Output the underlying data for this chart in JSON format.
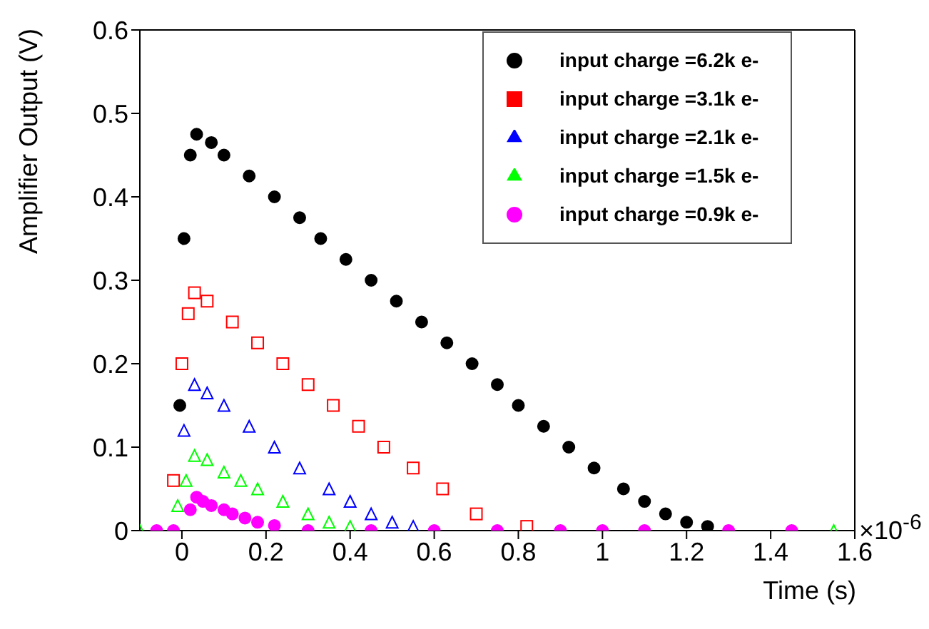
{
  "chart_data": {
    "type": "scatter",
    "xlabel": "Time (s)",
    "ylabel": "Amplifier Output (V)",
    "annotations": [
      "×10$^{-6}$"
    ],
    "xlim": [
      -0.1,
      1.6
    ],
    "xticks": [
      0,
      0.2,
      0.4,
      0.6,
      0.8,
      1,
      1.2,
      1.4,
      1.6
    ],
    "ylim": [
      0,
      0.6
    ],
    "yticks": [
      0,
      0.1,
      0.2,
      0.3,
      0.4,
      0.5,
      0.6
    ],
    "legend": "top right",
    "grid": false,
    "series": [
      {
        "name": "input charge =6.2k e-",
        "color": "#000000",
        "marker": "circle",
        "x": [
          -0.005,
          0.005,
          0.02,
          0.035,
          0.07,
          0.1,
          0.16,
          0.22,
          0.28,
          0.33,
          0.39,
          0.45,
          0.51,
          0.57,
          0.63,
          0.69,
          0.75,
          0.8,
          0.86,
          0.92,
          0.98,
          1.05,
          1.1,
          1.15,
          1.2,
          1.25
        ],
        "values": [
          0.15,
          0.35,
          0.45,
          0.475,
          0.465,
          0.45,
          0.425,
          0.4,
          0.375,
          0.35,
          0.325,
          0.3,
          0.275,
          0.25,
          0.225,
          0.2,
          0.175,
          0.15,
          0.125,
          0.1,
          0.075,
          0.05,
          0.035,
          0.02,
          0.01,
          0.005
        ]
      },
      {
        "name": "input charge =3.1k e-",
        "color": "#ff0000",
        "marker": "square",
        "x": [
          -0.02,
          0,
          0.015,
          0.03,
          0.06,
          0.12,
          0.18,
          0.24,
          0.3,
          0.36,
          0.42,
          0.48,
          0.55,
          0.62,
          0.7,
          0.82
        ],
        "values": [
          0.06,
          0.2,
          0.26,
          0.285,
          0.275,
          0.25,
          0.225,
          0.2,
          0.175,
          0.15,
          0.125,
          0.1,
          0.075,
          0.05,
          0.02,
          0.005
        ]
      },
      {
        "name": "input charge =2.1k e-",
        "color": "#0000ff",
        "marker": "triangle",
        "x": [
          0.005,
          0.03,
          0.06,
          0.1,
          0.16,
          0.22,
          0.28,
          0.35,
          0.4,
          0.45,
          0.5,
          0.55
        ],
        "values": [
          0.12,
          0.175,
          0.165,
          0.15,
          0.125,
          0.1,
          0.075,
          0.05,
          0.035,
          0.02,
          0.01,
          0.005
        ]
      },
      {
        "name": "input charge =1.5k e-",
        "color": "#00ff00",
        "marker": "triangle",
        "x": [
          -0.1,
          -0.01,
          0.01,
          0.03,
          0.06,
          0.1,
          0.14,
          0.18,
          0.24,
          0.3,
          0.35,
          0.4,
          1.55
        ],
        "values": [
          0,
          0.03,
          0.06,
          0.09,
          0.085,
          0.07,
          0.06,
          0.05,
          0.035,
          0.02,
          0.01,
          0.005,
          0
        ]
      },
      {
        "name": "input charge =0.9k e-",
        "color": "#ff00ff",
        "marker": "circle",
        "x": [
          -0.06,
          -0.02,
          0.02,
          0.035,
          0.05,
          0.07,
          0.1,
          0.12,
          0.15,
          0.18,
          0.22,
          0.3,
          0.45,
          0.6,
          0.75,
          0.9,
          1,
          1.1,
          1.3,
          1.45
        ],
        "values": [
          0,
          0,
          0.025,
          0.04,
          0.035,
          0.03,
          0.025,
          0.02,
          0.015,
          0.01,
          0.006,
          0,
          0,
          0,
          0,
          0,
          0,
          0,
          0,
          0
        ]
      }
    ]
  }
}
